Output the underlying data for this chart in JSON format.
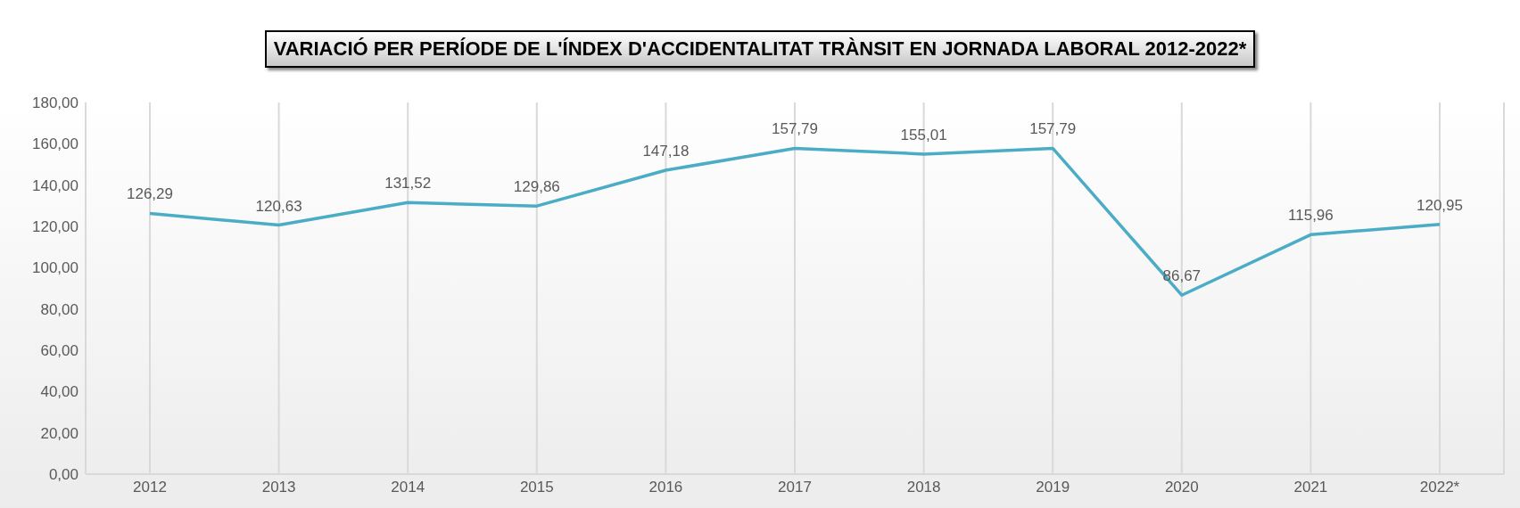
{
  "chart_data": {
    "type": "line",
    "title": "VARIACIÓ PER PERÍODE DE L'ÍNDEX D'ACCIDENTALITAT TRÀNSIT EN JORNADA LABORAL 2012-2022*",
    "categories": [
      "2012",
      "2013",
      "2014",
      "2015",
      "2016",
      "2017",
      "2018",
      "2019",
      "2020",
      "2021",
      "2022*"
    ],
    "values": [
      126.29,
      120.63,
      131.52,
      129.86,
      147.18,
      157.79,
      155.01,
      157.79,
      86.67,
      115.96,
      120.95
    ],
    "value_labels": [
      "126,29",
      "120,63",
      "131,52",
      "129,86",
      "147,18",
      "157,79",
      "155,01",
      "157,79",
      "86,67",
      "115,96",
      "120,95"
    ],
    "color": "#4bacc6",
    "ylim": [
      0,
      180
    ],
    "yticks": [
      {
        "value": 0,
        "label": "0,00"
      },
      {
        "value": 20,
        "label": "20,00"
      },
      {
        "value": 40,
        "label": "40,00"
      },
      {
        "value": 60,
        "label": "60,00"
      },
      {
        "value": 80,
        "label": "80,00"
      },
      {
        "value": 100,
        "label": "100,00"
      },
      {
        "value": 120,
        "label": "120,00"
      },
      {
        "value": 140,
        "label": "140,00"
      },
      {
        "value": 160,
        "label": "160,00"
      },
      {
        "value": 180,
        "label": "180,00"
      }
    ],
    "grid": "x"
  }
}
